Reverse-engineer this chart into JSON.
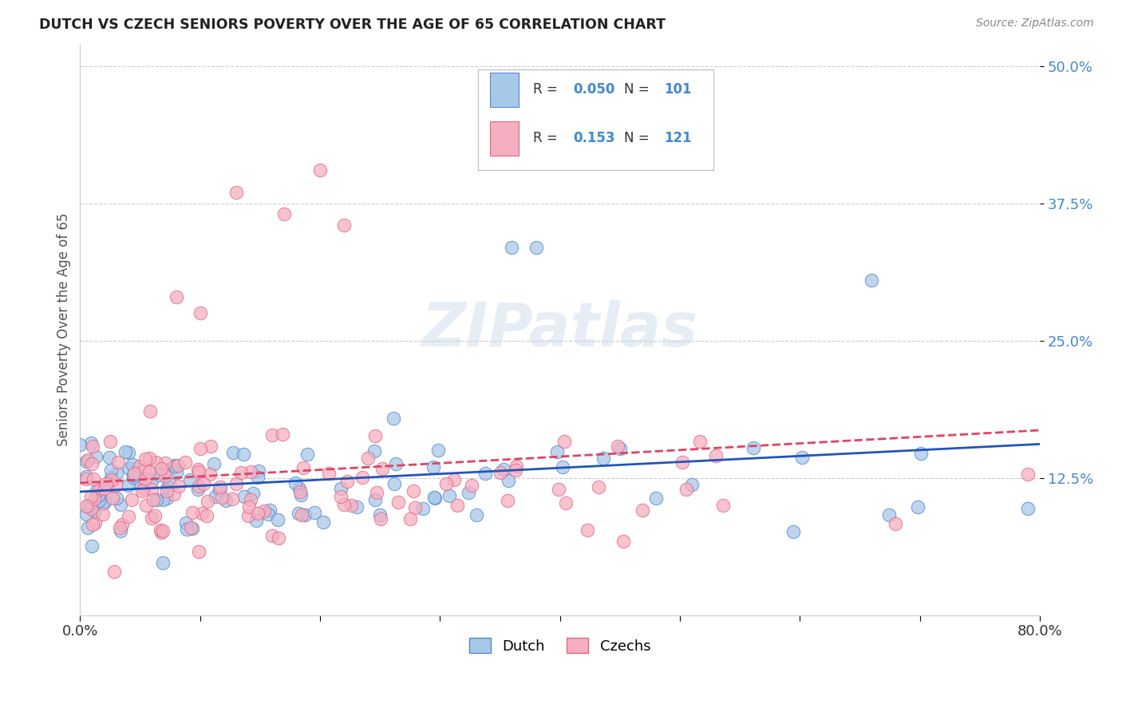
{
  "title": "DUTCH VS CZECH SENIORS POVERTY OVER THE AGE OF 65 CORRELATION CHART",
  "source": "Source: ZipAtlas.com",
  "ylabel": "Seniors Poverty Over the Age of 65",
  "dutch_color": "#a8c8e8",
  "czech_color": "#f5afc0",
  "dutch_edge": "#5588cc",
  "czech_edge": "#e06888",
  "trend_dutch_color": "#2255bb",
  "trend_czech_color": "#dd4466",
  "R_dutch": 0.05,
  "N_dutch": 101,
  "R_czech": 0.153,
  "N_czech": 121,
  "watermark": "ZIPatlas",
  "background_color": "#ffffff",
  "grid_color": "#cccccc",
  "xlim": [
    0.0,
    0.8
  ],
  "ylim": [
    0.0,
    0.52
  ],
  "ytick_vals": [
    0.125,
    0.25,
    0.375,
    0.5
  ],
  "ytick_labels": [
    "12.5%",
    "25.0%",
    "37.5%",
    "50.0%"
  ]
}
